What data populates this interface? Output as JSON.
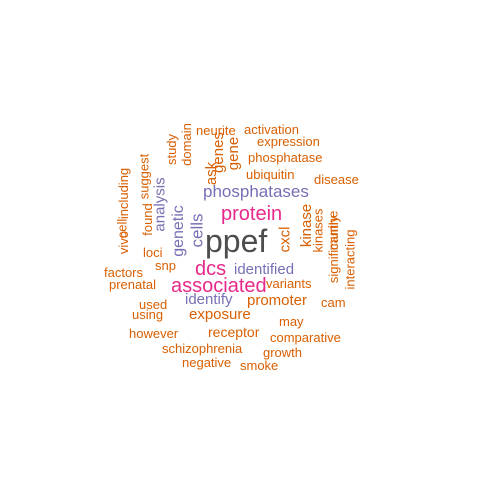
{
  "colors": {
    "orange": "#d95f02",
    "purple": "#7570b3",
    "magenta": "#e7298a",
    "gray": "#4d4d4d"
  },
  "words": [
    {
      "text": "ppef",
      "color": "gray"
    },
    {
      "text": "protein",
      "color": "magenta"
    },
    {
      "text": "dcs",
      "color": "magenta"
    },
    {
      "text": "associated",
      "color": "magenta"
    },
    {
      "text": "phosphatases",
      "color": "purple"
    },
    {
      "text": "identified",
      "color": "purple"
    },
    {
      "text": "identify",
      "color": "purple"
    },
    {
      "text": "genetic",
      "color": "purple"
    },
    {
      "text": "cells",
      "color": "purple"
    },
    {
      "text": "analysis",
      "color": "purple"
    },
    {
      "text": "neurite",
      "color": "orange"
    },
    {
      "text": "activation",
      "color": "orange"
    },
    {
      "text": "expression",
      "color": "orange"
    },
    {
      "text": "phosphatase",
      "color": "orange"
    },
    {
      "text": "ubiquitin",
      "color": "orange"
    },
    {
      "text": "disease",
      "color": "orange"
    },
    {
      "text": "study",
      "color": "orange"
    },
    {
      "text": "domain",
      "color": "orange"
    },
    {
      "text": "ask",
      "color": "orange"
    },
    {
      "text": "genes",
      "color": "orange"
    },
    {
      "text": "gene",
      "color": "orange"
    },
    {
      "text": "suggest",
      "color": "orange"
    },
    {
      "text": "found",
      "color": "orange"
    },
    {
      "text": "including",
      "color": "orange"
    },
    {
      "text": "vivo",
      "color": "orange"
    },
    {
      "text": "cell",
      "color": "orange"
    },
    {
      "text": "loci",
      "color": "orange"
    },
    {
      "text": "snp",
      "color": "orange"
    },
    {
      "text": "factors",
      "color": "orange"
    },
    {
      "text": "prenatal",
      "color": "orange"
    },
    {
      "text": "used",
      "color": "orange"
    },
    {
      "text": "using",
      "color": "orange"
    },
    {
      "text": "however",
      "color": "orange"
    },
    {
      "text": "exposure",
      "color": "orange"
    },
    {
      "text": "receptor",
      "color": "orange"
    },
    {
      "text": "schizophrenia",
      "color": "orange"
    },
    {
      "text": "negative",
      "color": "orange"
    },
    {
      "text": "smoke",
      "color": "orange"
    },
    {
      "text": "growth",
      "color": "orange"
    },
    {
      "text": "comparative",
      "color": "orange"
    },
    {
      "text": "may",
      "color": "orange"
    },
    {
      "text": "promoter",
      "color": "orange"
    },
    {
      "text": "variants",
      "color": "orange"
    },
    {
      "text": "cam",
      "color": "orange"
    },
    {
      "text": "cxcl",
      "color": "orange"
    },
    {
      "text": "kinase",
      "color": "orange"
    },
    {
      "text": "kinases",
      "color": "orange"
    },
    {
      "text": "murine",
      "color": "orange"
    },
    {
      "text": "significantly",
      "color": "orange"
    },
    {
      "text": "interacting",
      "color": "orange"
    }
  ]
}
